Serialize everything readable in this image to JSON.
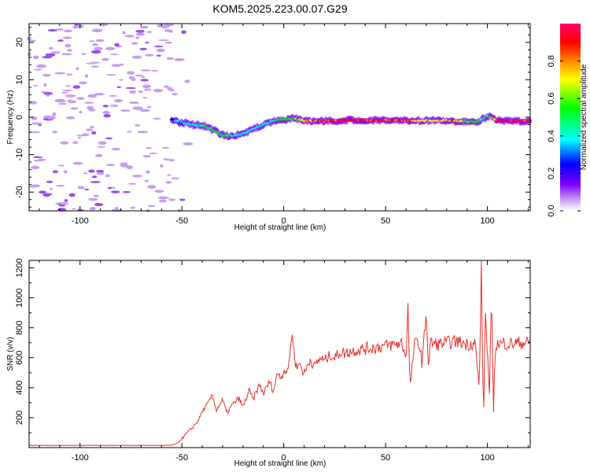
{
  "figure": {
    "title": "KOM5.2025.223.00.07.G29"
  },
  "chart_data": [
    {
      "type": "heatmap",
      "xlabel": "Height of straight line (km)",
      "ylabel": "Frequency (Hz)",
      "xlim": [
        -125,
        121
      ],
      "ylim": [
        -25,
        25
      ],
      "xticks": [
        -100,
        -50,
        0,
        50,
        100
      ],
      "yticks": [
        -20,
        -10,
        0,
        10,
        20
      ],
      "colorbar": {
        "label": "Normalized spectral amplitude",
        "range": [
          0,
          1
        ],
        "ticks": [
          0.0,
          0.2,
          0.4,
          0.6,
          0.8
        ],
        "tick_labels": [
          "0.0",
          "0.2",
          "0.4",
          "0.6",
          "0.8"
        ],
        "colormap": [
          "#ffffff",
          "#c89cf2",
          "#7f00ff",
          "#0000ff",
          "#00ffff",
          "#00ff00",
          "#ffff00",
          "#ff8800",
          "#ff0000",
          "#ff0066"
        ]
      },
      "signal_trace": {
        "x": [
          -55,
          -50,
          -45,
          -40,
          -35,
          -30,
          -25,
          -20,
          -15,
          -10,
          -5,
          0,
          5,
          10,
          20,
          30,
          40,
          50,
          60,
          70,
          80,
          90,
          95,
          100,
          105,
          110,
          121
        ],
        "y": [
          -0.5,
          -1.5,
          -2.0,
          -2.2,
          -3.2,
          -4.8,
          -5.0,
          -4.5,
          -3.2,
          -2.0,
          -1.0,
          -0.6,
          -0.3,
          -0.9,
          -1.0,
          -0.8,
          -0.8,
          -0.8,
          -0.9,
          -0.9,
          -0.9,
          -1.2,
          -1.3,
          0.3,
          -0.8,
          -1.0,
          -1.0
        ],
        "amplitude": [
          0.25,
          0.3,
          0.35,
          0.4,
          0.45,
          0.45,
          0.4,
          0.35,
          0.35,
          0.35,
          0.4,
          0.5,
          0.5,
          0.7,
          0.85,
          0.9,
          0.9,
          0.9,
          0.85,
          0.6,
          0.8,
          0.6,
          0.4,
          0.4,
          0.9,
          0.95,
          0.95
        ]
      },
      "noise_region_x": [
        -125,
        -55
      ]
    },
    {
      "type": "line",
      "xlabel": "Height of straight line (km)",
      "ylabel": "SNR (v/v)",
      "xlim": [
        -125,
        121
      ],
      "ylim": [
        0,
        1250
      ],
      "xticks": [
        -100,
        -50,
        0,
        50,
        100
      ],
      "yticks": [
        200,
        400,
        600,
        800,
        1000,
        1200
      ],
      "color": "#e8312c",
      "series": [
        {
          "x": [
            -125,
            -110,
            -90,
            -70,
            -60,
            -55,
            -52,
            -50,
            -48,
            -45,
            -42,
            -40,
            -38,
            -35,
            -33,
            -30,
            -28,
            -25,
            -22,
            -20,
            -17,
            -15,
            -12,
            -10,
            -7,
            -5,
            -3,
            -1,
            0,
            2,
            4,
            6,
            8,
            10,
            13,
            15,
            18,
            20,
            23,
            25,
            28,
            30,
            35,
            40,
            45,
            50,
            55,
            58,
            60,
            61,
            62,
            64,
            66,
            68,
            70,
            71,
            72,
            75,
            80,
            85,
            90,
            94,
            96,
            97,
            98,
            99,
            100,
            101,
            102,
            103,
            104,
            105,
            106,
            107,
            108,
            110,
            115,
            121
          ],
          "y": [
            15,
            15,
            15,
            15,
            15,
            15,
            30,
            60,
            90,
            130,
            180,
            240,
            280,
            350,
            250,
            320,
            230,
            290,
            330,
            270,
            380,
            320,
            420,
            360,
            440,
            380,
            500,
            470,
            520,
            500,
            760,
            540,
            560,
            490,
            590,
            540,
            600,
            580,
            620,
            600,
            640,
            630,
            650,
            660,
            670,
            680,
            690,
            700,
            600,
            940,
            380,
            680,
            720,
            560,
            920,
            540,
            700,
            690,
            700,
            710,
            690,
            700,
            380,
            1250,
            160,
            900,
            640,
            350,
            990,
            280,
            700,
            690,
            700,
            690,
            700,
            690,
            700,
            700
          ]
        }
      ]
    }
  ]
}
